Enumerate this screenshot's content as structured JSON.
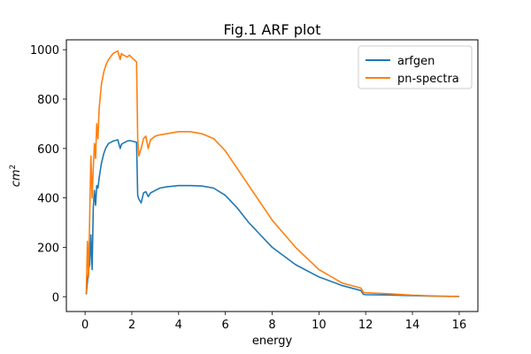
{
  "chart_data": {
    "type": "line",
    "title": "Fig.1 ARF plot",
    "xlabel": "energy",
    "ylabel": "cm2",
    "xlim": [
      -0.8,
      16.8
    ],
    "ylim": [
      -60,
      1040
    ],
    "xticks": [
      0,
      2,
      4,
      6,
      8,
      10,
      12,
      14,
      16
    ],
    "yticks": [
      0,
      200,
      400,
      600,
      800,
      1000
    ],
    "grid": false,
    "legend_position": "top-right",
    "series": [
      {
        "name": "arfgen",
        "color": "#1f77b4",
        "x": [
          0.05,
          0.1,
          0.15,
          0.2,
          0.25,
          0.3,
          0.35,
          0.4,
          0.45,
          0.5,
          0.55,
          0.6,
          0.7,
          0.8,
          0.9,
          1.0,
          1.2,
          1.4,
          1.5,
          1.55,
          1.6,
          1.7,
          1.8,
          1.9,
          2.0,
          2.1,
          2.2,
          2.25,
          2.3,
          2.4,
          2.5,
          2.6,
          2.7,
          2.8,
          3.0,
          3.2,
          3.5,
          4.0,
          4.5,
          5.0,
          5.5,
          6.0,
          6.5,
          7.0,
          7.5,
          8.0,
          9.0,
          10.0,
          11.0,
          11.8,
          11.9,
          12.0,
          13.0,
          14.0,
          15.0,
          16.0
        ],
        "y": [
          10,
          60,
          110,
          130,
          250,
          110,
          360,
          430,
          370,
          450,
          440,
          480,
          540,
          580,
          605,
          620,
          630,
          635,
          600,
          615,
          620,
          625,
          630,
          632,
          630,
          628,
          625,
          410,
          395,
          380,
          420,
          425,
          405,
          420,
          430,
          440,
          445,
          450,
          450,
          448,
          440,
          410,
          360,
          300,
          250,
          200,
          130,
          80,
          45,
          25,
          10,
          8,
          7,
          4,
          2,
          1
        ]
      },
      {
        "name": "pn-spectra",
        "color": "#ff7f0e",
        "x": [
          0.05,
          0.1,
          0.15,
          0.2,
          0.25,
          0.3,
          0.35,
          0.4,
          0.45,
          0.5,
          0.55,
          0.6,
          0.7,
          0.8,
          0.9,
          1.0,
          1.2,
          1.4,
          1.5,
          1.55,
          1.6,
          1.7,
          1.8,
          1.9,
          2.0,
          2.1,
          2.2,
          2.25,
          2.3,
          2.4,
          2.5,
          2.6,
          2.7,
          2.8,
          3.0,
          3.2,
          3.5,
          4.0,
          4.5,
          5.0,
          5.5,
          6.0,
          6.5,
          7.0,
          7.5,
          8.0,
          9.0,
          10.0,
          11.0,
          11.8,
          11.9,
          12.0,
          13.0,
          14.0,
          15.0,
          16.0
        ],
        "y": [
          15,
          225,
          80,
          330,
          570,
          400,
          520,
          620,
          560,
          700,
          640,
          760,
          860,
          910,
          940,
          960,
          985,
          995,
          960,
          985,
          980,
          975,
          970,
          978,
          968,
          960,
          950,
          640,
          570,
          600,
          640,
          650,
          600,
          635,
          650,
          655,
          660,
          668,
          668,
          660,
          640,
          590,
          520,
          450,
          380,
          310,
          200,
          110,
          55,
          35,
          18,
          16,
          12,
          6,
          3,
          1
        ]
      }
    ]
  }
}
